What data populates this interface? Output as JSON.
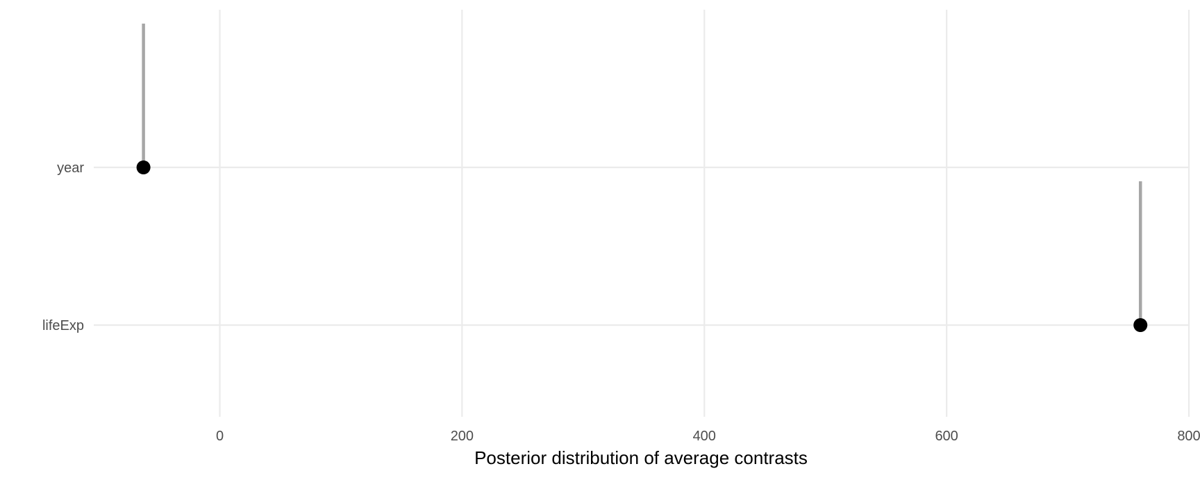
{
  "chart_data": {
    "type": "scatter",
    "title": "",
    "xlabel": "Posterior distribution of average contrasts",
    "ylabel": "",
    "xlim": [
      -120,
      800
    ],
    "x_ticks": [
      0,
      200,
      400,
      600,
      800
    ],
    "grid": true,
    "categories": [
      "year",
      "lifeExp"
    ],
    "points": [
      {
        "term": "year",
        "estimate": -63
      },
      {
        "term": "lifeExp",
        "estimate": 760
      }
    ],
    "colors": {
      "point": "#000000",
      "stem": "#a6a6a6",
      "grid": "#ebebeb"
    }
  }
}
